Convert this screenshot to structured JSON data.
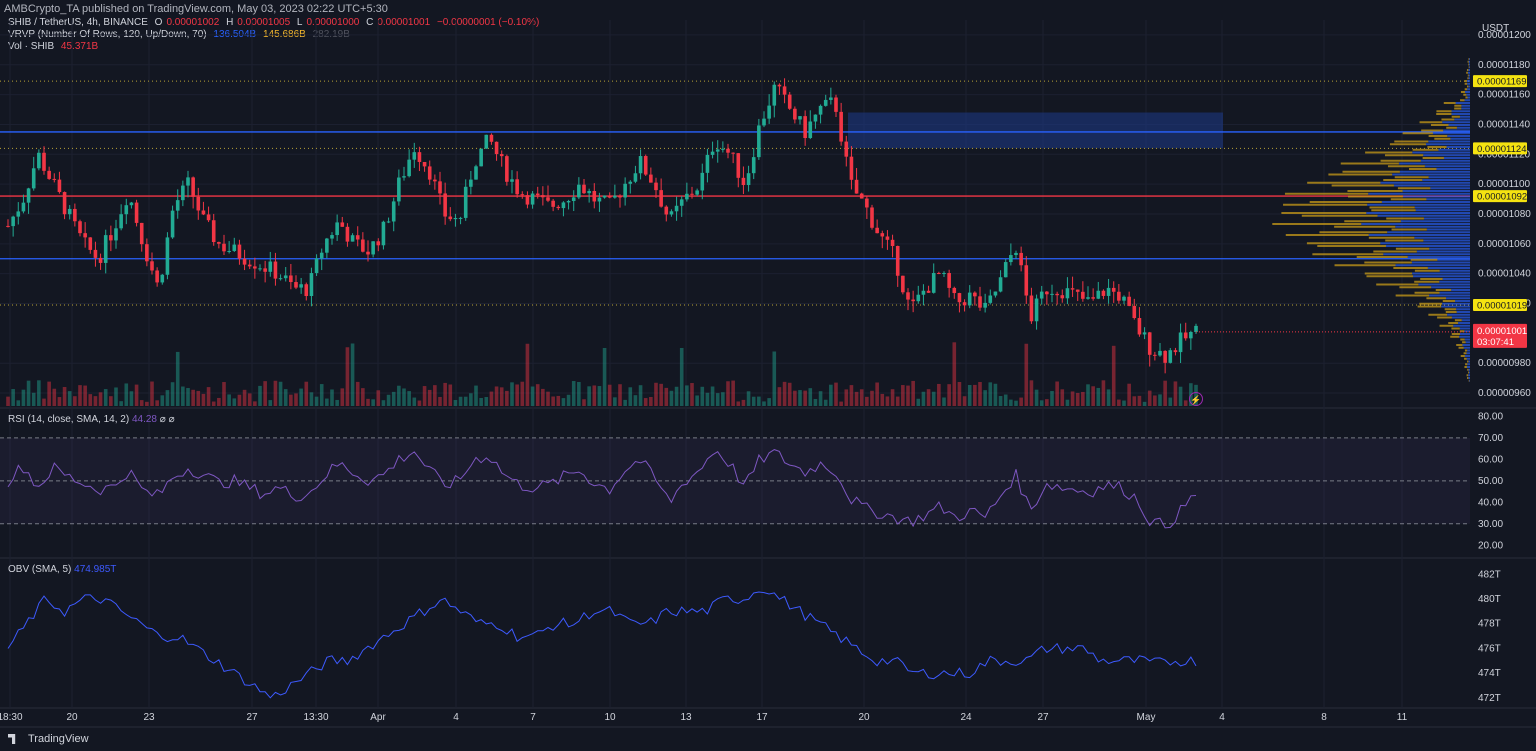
{
  "publish_line": "AMBCrypto_TA published on TradingView.com, May 03, 2023 02:22 UTC+5:30",
  "legend": {
    "symbol": "SHIB / TetherUS, 4h, BINANCE",
    "o_label": "O",
    "o": "0.00001002",
    "h_label": "H",
    "h": "0.00001005",
    "l_label": "L",
    "l": "0.00001000",
    "c_label": "C",
    "c": "0.00001001",
    "change": "−0.00000001 (−0.10%)",
    "vrvp": "VRVP (Number Of Rows, 120, Up/Down, 70)",
    "vrvp_up": "136.504B",
    "vrvp_down": "145.686B",
    "vrvp_total": "282.19B",
    "vol": "Vol · SHIB",
    "vol_value": "45.371B"
  },
  "price_axis": {
    "currency": "USDT",
    "ticks": [
      "0.00001200",
      "0.00001180",
      "0.00001160",
      "0.00001140",
      "0.00001120",
      "0.00001100",
      "0.00001080",
      "0.00001060",
      "0.00001040",
      "0.00001020",
      "0.00000980",
      "0.00000960"
    ],
    "markers": [
      {
        "label": "0.00001169",
        "color": "#f5e311"
      },
      {
        "label": "0.00001124",
        "color": "#f5e311"
      },
      {
        "label": "0.00001092",
        "color": "#f5e311"
      },
      {
        "label": "0.00001019",
        "color": "#f5e311"
      }
    ],
    "current": {
      "price": "0.00001001",
      "countdown": "03:07:41",
      "color": "#f23645"
    }
  },
  "rsi": {
    "title": "RSI (14, close, SMA, 14, 2)",
    "value": "44.28",
    "extra": "⌀ ⌀",
    "ticks": [
      "80.00",
      "70.00",
      "60.00",
      "50.00",
      "40.00",
      "30.00",
      "20.00"
    ]
  },
  "obv": {
    "title": "OBV (SMA, 5)",
    "value": "474.985T",
    "ticks": [
      "482T",
      "480T",
      "478T",
      "476T",
      "474T",
      "472T"
    ]
  },
  "time_axis": [
    "18:30",
    "20",
    "23",
    "27",
    "13:30",
    "Apr",
    "4",
    "7",
    "10",
    "13",
    "17",
    "20",
    "24",
    "27",
    "May",
    "4",
    "8",
    "11"
  ],
  "footer": "TradingView",
  "colors": {
    "bg": "#131722",
    "up": "#22ab94",
    "down": "#f23645",
    "level_blue": "#2962ff",
    "level_red": "#f23645",
    "dotted": "#b8a337",
    "zone": "#1e3a8a",
    "vp_up": "#2962ff",
    "vp_down": "#c89b18",
    "rsi": "#7e57c2",
    "obv": "#3d5afe"
  },
  "chart_data": {
    "type": "candlestick",
    "price_levels": {
      "resistance_blue": 1.135e-05,
      "red_mid": 1.092e-05,
      "support_blue": 1.05e-05,
      "dotted": [
        1.169e-05,
        1.124e-05,
        1.019e-05
      ]
    },
    "price_path": [
      1.072e-05,
      1.09e-05,
      1.12e-05,
      1.1e-05,
      1.08e-05,
      1.06e-05,
      1.05e-05,
      1.07e-05,
      1.095e-05,
      1.06e-05,
      1.03e-05,
      1.085e-05,
      1.1e-05,
      1.075e-05,
      1.06e-05,
      1.055e-05,
      1.05e-05,
      1.045e-05,
      1.04e-05,
      1.03e-05,
      1.03e-05,
      1.06e-05,
      1.075e-05,
      1.06e-05,
      1.055e-05,
      1.07e-05,
      1.1e-05,
      1.125e-05,
      1.11e-05,
      1.08e-05,
      1.075e-05,
      1.115e-05,
      1.13e-05,
      1.11e-05,
      1.095e-05,
      1.09e-05,
      1.085e-05,
      1.09e-05,
      1.1e-05,
      1.09e-05,
      1.085e-05,
      1.1e-05,
      1.115e-05,
      1.1e-05,
      1.075e-05,
      1.09e-05,
      1.1e-05,
      1.13e-05,
      1.12e-05,
      1.1e-05,
      1.14e-05,
      1.165e-05,
      1.15e-05,
      1.135e-05,
      1.15e-05,
      1.155e-05,
      1.1e-05,
      1.085e-05,
      1.065e-05,
      1.05e-05,
      1.015e-05,
      1.03e-05,
      1.04e-05,
      1.02e-05,
      1.025e-05,
      1.015e-05,
      1.035e-05,
      1.06e-05,
      1.01e-05,
      1.03e-05,
      1.03e-05,
      1.025e-05,
      1.02e-05,
      1.03e-05,
      1.025e-05,
      1.005e-05,
      9.9e-06,
      9.85e-06,
      9.95e-06,
      1.001e-05
    ],
    "rsi_path": [
      50,
      57,
      47,
      56,
      52,
      49,
      46,
      47,
      55,
      45,
      43,
      52,
      56,
      53,
      49,
      50,
      47,
      44,
      47,
      43,
      44,
      52,
      58,
      54,
      50,
      53,
      60,
      64,
      55,
      48,
      50,
      60,
      62,
      53,
      48,
      47,
      48,
      52,
      55,
      49,
      46,
      55,
      60,
      51,
      40,
      50,
      55,
      65,
      58,
      47,
      60,
      63,
      58,
      54,
      58,
      55,
      42,
      37,
      35,
      33,
      31,
      34,
      38,
      33,
      36,
      33,
      43,
      53,
      36,
      49,
      47,
      46,
      45,
      48,
      47,
      42,
      31,
      29,
      36,
      44
    ],
    "obv_path": [
      476,
      478,
      480,
      479,
      480,
      480,
      479,
      478,
      477,
      477,
      476,
      475,
      474,
      473,
      472,
      473,
      474,
      475,
      475,
      476,
      477,
      478,
      479,
      480,
      479,
      478,
      478,
      477,
      477,
      478,
      478,
      479,
      479,
      478,
      478,
      479,
      479,
      479,
      480,
      480,
      481,
      480,
      479,
      478,
      477,
      476,
      475,
      475,
      474,
      474,
      474,
      474,
      475,
      475,
      475,
      476,
      476,
      476,
      475,
      475,
      475,
      474.8,
      475,
      475
    ]
  }
}
